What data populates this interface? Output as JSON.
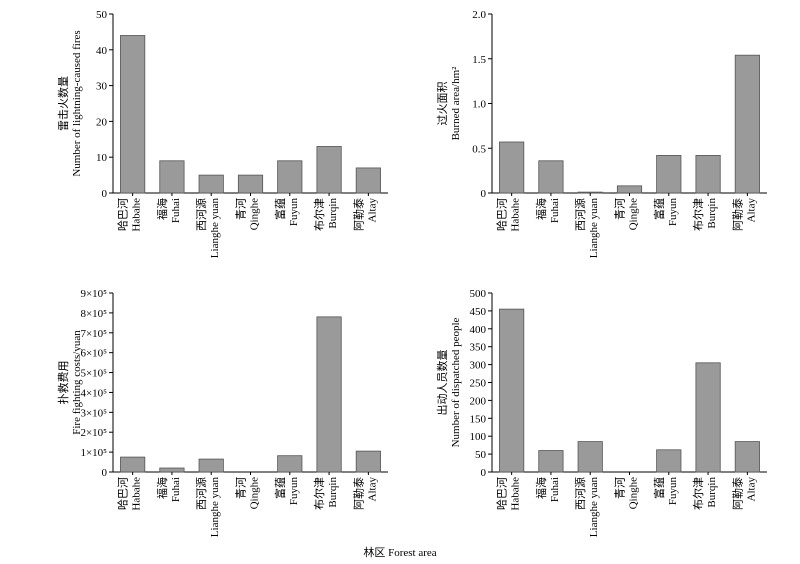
{
  "chart_data": [
    {
      "type": "bar",
      "categories": [
        "哈巴河 Habahe",
        "福海 Fuhai",
        "西河源 Lianghe yuan",
        "青河 Qinghe",
        "富蕴 Fuyun",
        "布尔津 Burqin",
        "阿勒泰 Altay"
      ],
      "category_labels": [
        [
          "哈巴河",
          "Habahe"
        ],
        [
          "福海",
          "Fuhai"
        ],
        [
          "西河源",
          "Lianghe yuan"
        ],
        [
          "青河",
          "Qinghe"
        ],
        [
          "富蕴",
          "Fuyun"
        ],
        [
          "布尔津",
          "Burqin"
        ],
        [
          "阿勒泰",
          "Altay"
        ]
      ],
      "values": [
        44,
        9,
        5,
        5,
        9,
        13,
        7
      ],
      "ylabel": [
        "雷击火数量",
        "Number of lightning-caused fires"
      ],
      "ylim": [
        0,
        50
      ],
      "yticks": [
        0,
        10,
        20,
        30,
        40,
        50
      ],
      "yticklabels": [
        "0",
        "10",
        "20",
        "30",
        "40",
        "50"
      ]
    },
    {
      "type": "bar",
      "categories": [
        "哈巴河 Habahe",
        "福海 Fuhai",
        "西河源 Lianghe yuan",
        "青河 Qinghe",
        "富蕴 Fuyun",
        "布尔津 Burqin",
        "阿勒泰 Altay"
      ],
      "category_labels": [
        [
          "哈巴河",
          "Habahe"
        ],
        [
          "福海",
          "Fuhai"
        ],
        [
          "西河源",
          "Lianghe yuan"
        ],
        [
          "青河",
          "Qinghe"
        ],
        [
          "富蕴",
          "Fuyun"
        ],
        [
          "布尔津",
          "Burqin"
        ],
        [
          "阿勒泰",
          "Altay"
        ]
      ],
      "values": [
        0.57,
        0.36,
        0.01,
        0.08,
        0.42,
        0.42,
        1.54
      ],
      "ylabel": [
        "过火面积",
        "Burned area/hm²"
      ],
      "ylim": [
        0,
        2.0
      ],
      "yticks": [
        0,
        0.5,
        1.0,
        1.5,
        2.0
      ],
      "yticklabels": [
        "0",
        "0.5",
        "1.0",
        "1.5",
        "2.0"
      ]
    },
    {
      "type": "bar",
      "categories": [
        "哈巴河 Habahe",
        "福海 Fuhai",
        "西河源 Lianghe yuan",
        "青河 Qinghe",
        "富蕴 Fuyun",
        "布尔津 Burqin",
        "阿勒泰 Altay"
      ],
      "category_labels": [
        [
          "哈巴河",
          "Habahe"
        ],
        [
          "福海",
          "Fuhai"
        ],
        [
          "西河源",
          "Lianghe yuan"
        ],
        [
          "青河",
          "Qinghe"
        ],
        [
          "富蕴",
          "Fuyun"
        ],
        [
          "布尔津",
          "Burqin"
        ],
        [
          "阿勒泰",
          "Altay"
        ]
      ],
      "values": [
        75000,
        20000,
        65000,
        0,
        82000,
        780000,
        105000
      ],
      "ylabel": [
        "扑救费用",
        "Fire fighting costs/yuan"
      ],
      "ylim": [
        0,
        900000
      ],
      "yticks": [
        0,
        100000,
        200000,
        300000,
        400000,
        500000,
        600000,
        700000,
        800000,
        900000
      ],
      "yticklabels": [
        "0",
        "1×10⁵",
        "2×10⁵",
        "3×10⁵",
        "4×10⁵",
        "5×10⁵",
        "6×10⁵",
        "7×10⁵",
        "8×10⁵",
        "9×10⁵"
      ]
    },
    {
      "type": "bar",
      "categories": [
        "哈巴河 Habahe",
        "福海 Fuhai",
        "西河源 Lianghe yuan",
        "青河 Qinghe",
        "富蕴 Fuyun",
        "布尔津 Burqin",
        "阿勒泰 Altay"
      ],
      "category_labels": [
        [
          "哈巴河",
          "Habahe"
        ],
        [
          "福海",
          "Fuhai"
        ],
        [
          "西河源",
          "Lianghe yuan"
        ],
        [
          "青河",
          "Qinghe"
        ],
        [
          "富蕴",
          "Fuyun"
        ],
        [
          "布尔津",
          "Burqin"
        ],
        [
          "阿勒泰",
          "Altay"
        ]
      ],
      "values": [
        455,
        60,
        85,
        0,
        62,
        305,
        85
      ],
      "ylabel": [
        "出动人员数量",
        "Number of dispatched people"
      ],
      "ylim": [
        0,
        500
      ],
      "yticks": [
        0,
        50,
        100,
        150,
        200,
        250,
        300,
        350,
        400,
        450,
        500
      ],
      "yticklabels": [
        "0",
        "50",
        "100",
        "150",
        "200",
        "250",
        "300",
        "350",
        "400",
        "450",
        "500"
      ]
    }
  ],
  "xlabel": "林区 Forest area"
}
